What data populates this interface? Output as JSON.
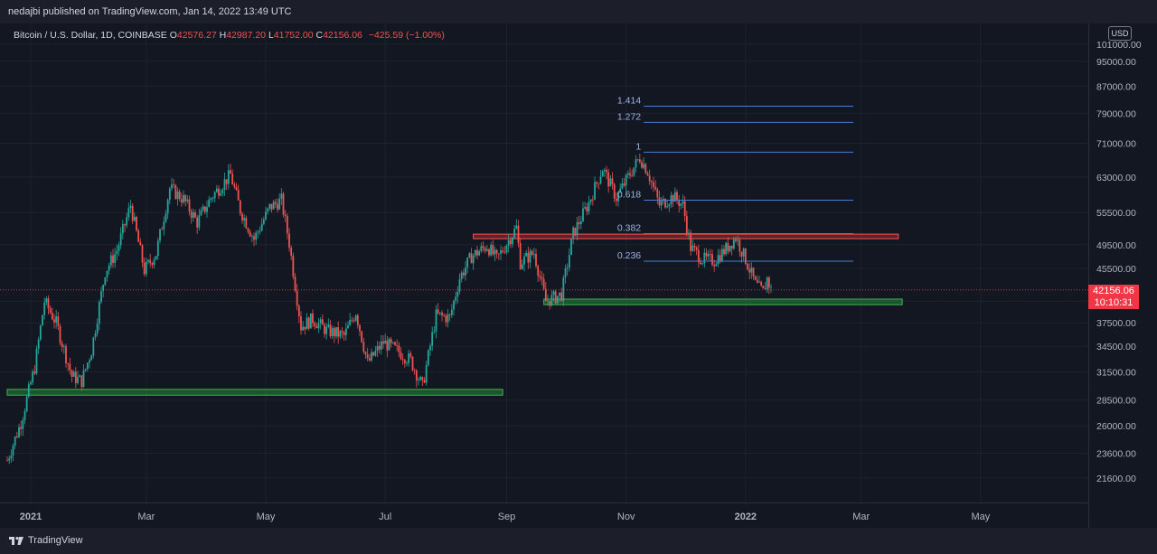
{
  "header": {
    "published": "nedajbi published on TradingView.com, Jan 14, 2022 13:49 UTC"
  },
  "symbol": {
    "name": "Bitcoin / U.S. Dollar, 1D, COINBASE",
    "open_label": "O",
    "open": "42576.27",
    "high_label": "H",
    "high": "42987.20",
    "low_label": "L",
    "low": "41752.00",
    "close_label": "C",
    "close": "42156.06",
    "change": "−425.59 (−1.00%)"
  },
  "currency": "USD",
  "last_price": {
    "price": "42156.06",
    "countdown": "10:10:31",
    "color": "#f23645"
  },
  "footer": {
    "brand": "TradingView"
  },
  "chart_data": {
    "type": "candlestick",
    "y_scale": "log",
    "y_ticks": [
      "101000.00",
      "95000.00",
      "87000.00",
      "79000.00",
      "71000.00",
      "63000.00",
      "55500.00",
      "49500.00",
      "45500.00",
      "40500.00",
      "37500.00",
      "34500.00",
      "31500.00",
      "28500.00",
      "26000.00",
      "23600.00",
      "21600.00"
    ],
    "x_ticks": [
      "2021",
      "Mar",
      "May",
      "Jul",
      "Sep",
      "Nov",
      "2022",
      "Mar",
      "May"
    ],
    "x_range": [
      "2020-12-20",
      "2022-06-25"
    ],
    "y_range": [
      19800,
      108000
    ],
    "colors": {
      "up": "#26a69a",
      "down": "#ef5350",
      "fib": "#4a7dd6",
      "support": "#1f8b3c",
      "resistance": "#e53935"
    },
    "fibonacci": {
      "from_date": "2021-11-10",
      "to_date": "2022-02-25",
      "levels": [
        {
          "label": "1.414",
          "price": 81000
        },
        {
          "label": "1.272",
          "price": 76500
        },
        {
          "label": "1",
          "price": 68800
        },
        {
          "label": "0.618",
          "price": 58000
        },
        {
          "label": "0.382",
          "price": 51500
        },
        {
          "label": "0.236",
          "price": 46700
        }
      ]
    },
    "zones": [
      {
        "kind": "support",
        "from": "2020-12-20",
        "to": "2021-08-30",
        "low": 29000,
        "high": 29600
      },
      {
        "kind": "resistance",
        "from": "2021-08-15",
        "to": "2022-03-20",
        "low": 50600,
        "high": 51400
      },
      {
        "kind": "support",
        "from": "2021-09-20",
        "to": "2022-03-22",
        "low": 40000,
        "high": 40800
      }
    ],
    "price_path": [
      [
        "2020-12-20",
        23000
      ],
      [
        "2020-12-27",
        26300
      ],
      [
        "2021-01-03",
        32000
      ],
      [
        "2021-01-08",
        40500
      ],
      [
        "2021-01-14",
        37500
      ],
      [
        "2021-01-22",
        31000
      ],
      [
        "2021-01-27",
        30500
      ],
      [
        "2021-02-01",
        34000
      ],
      [
        "2021-02-08",
        45000
      ],
      [
        "2021-02-14",
        48500
      ],
      [
        "2021-02-21",
        57000
      ],
      [
        "2021-02-28",
        45200
      ],
      [
        "2021-03-06",
        48000
      ],
      [
        "2021-03-13",
        60500
      ],
      [
        "2021-03-20",
        58200
      ],
      [
        "2021-03-27",
        53600
      ],
      [
        "2021-04-03",
        58500
      ],
      [
        "2021-04-13",
        63500
      ],
      [
        "2021-04-18",
        56000
      ],
      [
        "2021-04-25",
        50500
      ],
      [
        "2021-05-03",
        56500
      ],
      [
        "2021-05-09",
        58000
      ],
      [
        "2021-05-13",
        49800
      ],
      [
        "2021-05-19",
        37000
      ],
      [
        "2021-05-25",
        38000
      ],
      [
        "2021-06-01",
        36500
      ],
      [
        "2021-06-10",
        35800
      ],
      [
        "2021-06-16",
        39000
      ],
      [
        "2021-06-22",
        32500
      ],
      [
        "2021-06-30",
        35000
      ],
      [
        "2021-07-07",
        34000
      ],
      [
        "2021-07-14",
        32800
      ],
      [
        "2021-07-20",
        29900
      ],
      [
        "2021-07-27",
        38500
      ],
      [
        "2021-08-03",
        38200
      ],
      [
        "2021-08-08",
        44000
      ],
      [
        "2021-08-14",
        47500
      ],
      [
        "2021-08-22",
        49300
      ],
      [
        "2021-08-27",
        47000
      ],
      [
        "2021-09-06",
        52600
      ],
      [
        "2021-09-08",
        46500
      ],
      [
        "2021-09-15",
        48100
      ],
      [
        "2021-09-21",
        40500
      ],
      [
        "2021-09-29",
        41500
      ],
      [
        "2021-10-05",
        51500
      ],
      [
        "2021-10-13",
        57500
      ],
      [
        "2021-10-20",
        65000
      ],
      [
        "2021-10-27",
        58500
      ],
      [
        "2021-11-02",
        63000
      ],
      [
        "2021-11-08",
        67500
      ],
      [
        "2021-11-12",
        64300
      ],
      [
        "2021-11-18",
        57000
      ],
      [
        "2021-11-25",
        58800
      ],
      [
        "2021-11-30",
        57000
      ],
      [
        "2021-12-04",
        49000
      ],
      [
        "2021-12-10",
        47000
      ],
      [
        "2021-12-16",
        46800
      ],
      [
        "2021-12-22",
        48800
      ],
      [
        "2021-12-27",
        50800
      ],
      [
        "2022-01-01",
        47000
      ],
      [
        "2022-01-06",
        43000
      ],
      [
        "2022-01-10",
        41800
      ],
      [
        "2022-01-12",
        43900
      ],
      [
        "2022-01-14",
        42156
      ]
    ]
  }
}
